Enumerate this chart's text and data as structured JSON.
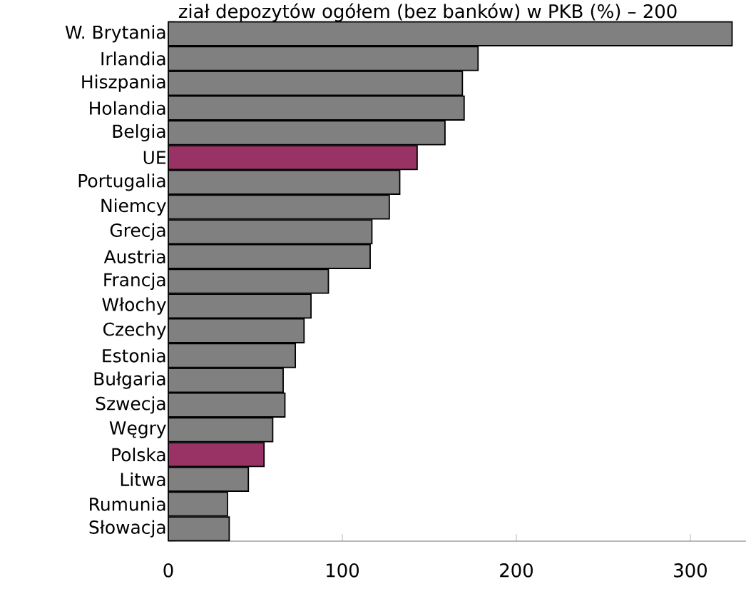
{
  "chart_data": {
    "type": "bar",
    "orientation": "horizontal",
    "title": "ział depozytów ogółem (bez banków) w PKB (%) – 200",
    "categories": [
      "W. Brytania",
      "Irlandia",
      "Hiszpania",
      "Holandia",
      "Belgia",
      "UE",
      "Portugalia",
      "Niemcy",
      "Grecja",
      "Austria",
      "Francja",
      "Włochy",
      "Czechy",
      "Estonia",
      "Bułgaria",
      "Szwecja",
      "Węgry",
      "Polska",
      "Litwa",
      "Rumunia",
      "Słowacja"
    ],
    "values": [
      324,
      178,
      169,
      170,
      159,
      143,
      133,
      127,
      117,
      116,
      92,
      82,
      78,
      73,
      66,
      67,
      60,
      55,
      46,
      34,
      35
    ],
    "colors": [
      "#808080",
      "#808080",
      "#808080",
      "#808080",
      "#808080",
      "#993366",
      "#808080",
      "#808080",
      "#808080",
      "#808080",
      "#808080",
      "#808080",
      "#808080",
      "#808080",
      "#808080",
      "#808080",
      "#808080",
      "#993366",
      "#808080",
      "#808080",
      "#808080"
    ],
    "xlim": [
      0,
      332
    ],
    "xticks": [
      0,
      100,
      200,
      300
    ]
  }
}
